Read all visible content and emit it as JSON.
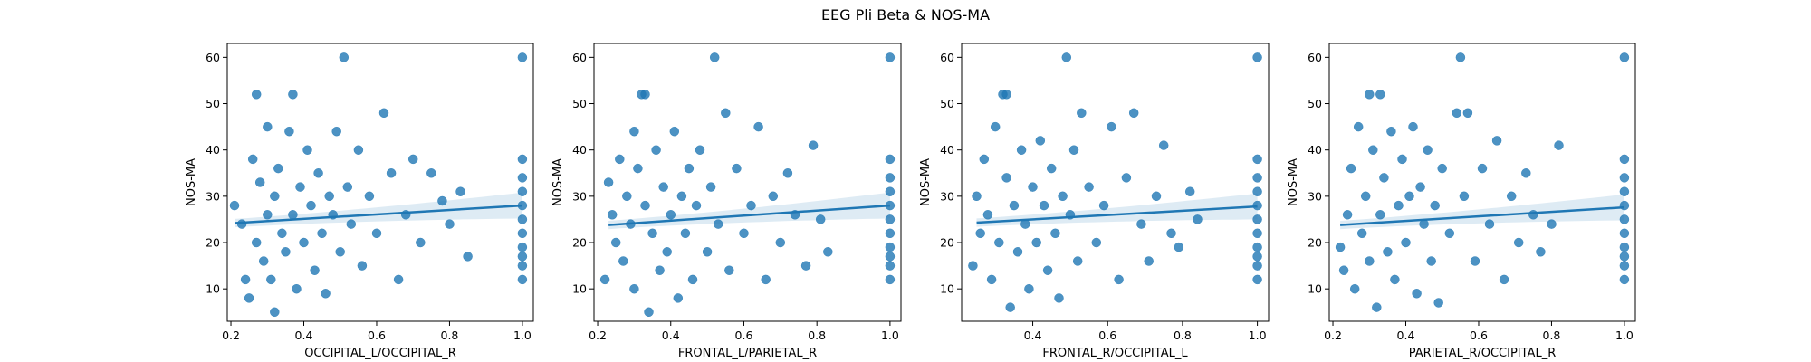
{
  "figure": {
    "suptitle": "EEG Pli Beta & NOS-MA"
  },
  "colors": {
    "series": "#1f77b4",
    "ci_band": "#1f77b4"
  },
  "chart_data": [
    {
      "type": "scatter",
      "title": "",
      "xlabel": "OCCIPITAL_L/OCCIPITAL_R",
      "ylabel": "NOS-MA",
      "xlim": [
        0.19,
        1.03
      ],
      "ylim": [
        3,
        63
      ],
      "xticks": [
        0.2,
        0.4,
        0.6,
        0.8,
        1.0
      ],
      "xtick_labels": [
        "0.2",
        "0.4",
        "0.6",
        "0.8",
        "1.0"
      ],
      "yticks": [
        10,
        20,
        30,
        40,
        50,
        60
      ],
      "ytick_labels": [
        "10",
        "20",
        "30",
        "40",
        "50",
        "60"
      ],
      "grid": false,
      "regression": {
        "x": [
          0.21,
          1.0
        ],
        "y": [
          24.2,
          28.0
        ],
        "ci_half_width": [
          0.9,
          2.8
        ]
      },
      "points": [
        [
          0.21,
          28
        ],
        [
          0.23,
          24
        ],
        [
          0.24,
          12
        ],
        [
          0.25,
          8
        ],
        [
          0.26,
          38
        ],
        [
          0.27,
          52
        ],
        [
          0.27,
          20
        ],
        [
          0.28,
          33
        ],
        [
          0.29,
          16
        ],
        [
          0.3,
          45
        ],
        [
          0.3,
          26
        ],
        [
          0.31,
          12
        ],
        [
          0.32,
          5
        ],
        [
          0.32,
          30
        ],
        [
          0.33,
          36
        ],
        [
          0.34,
          22
        ],
        [
          0.35,
          18
        ],
        [
          0.36,
          44
        ],
        [
          0.37,
          52
        ],
        [
          0.37,
          26
        ],
        [
          0.38,
          10
        ],
        [
          0.39,
          32
        ],
        [
          0.4,
          20
        ],
        [
          0.41,
          40
        ],
        [
          0.42,
          28
        ],
        [
          0.43,
          14
        ],
        [
          0.44,
          35
        ],
        [
          0.45,
          22
        ],
        [
          0.46,
          9
        ],
        [
          0.47,
          30
        ],
        [
          0.48,
          26
        ],
        [
          0.49,
          44
        ],
        [
          0.5,
          18
        ],
        [
          0.51,
          60
        ],
        [
          0.52,
          32
        ],
        [
          0.53,
          24
        ],
        [
          0.55,
          40
        ],
        [
          0.56,
          15
        ],
        [
          0.58,
          30
        ],
        [
          0.6,
          22
        ],
        [
          0.62,
          48
        ],
        [
          0.64,
          35
        ],
        [
          0.66,
          12
        ],
        [
          0.68,
          26
        ],
        [
          0.7,
          38
        ],
        [
          0.72,
          20
        ],
        [
          0.75,
          35
        ],
        [
          0.78,
          29
        ],
        [
          0.8,
          24
        ],
        [
          0.83,
          31
        ],
        [
          0.85,
          17
        ],
        [
          1.0,
          60
        ],
        [
          1.0,
          38
        ],
        [
          1.0,
          34
        ],
        [
          1.0,
          31
        ],
        [
          1.0,
          28
        ],
        [
          1.0,
          25
        ],
        [
          1.0,
          22
        ],
        [
          1.0,
          19
        ],
        [
          1.0,
          17
        ],
        [
          1.0,
          15
        ],
        [
          1.0,
          12
        ]
      ]
    },
    {
      "type": "scatter",
      "title": "",
      "xlabel": "FRONTAL_L/PARIETAL_R",
      "ylabel": "NOS-MA",
      "xlim": [
        0.19,
        1.03
      ],
      "ylim": [
        3,
        63
      ],
      "xticks": [
        0.2,
        0.4,
        0.6,
        0.8,
        1.0
      ],
      "xtick_labels": [
        "0.2",
        "0.4",
        "0.6",
        "0.8",
        "1.0"
      ],
      "yticks": [
        10,
        20,
        30,
        40,
        50,
        60
      ],
      "ytick_labels": [
        "10",
        "20",
        "30",
        "40",
        "50",
        "60"
      ],
      "grid": false,
      "regression": {
        "x": [
          0.23,
          1.0
        ],
        "y": [
          23.8,
          28.0
        ],
        "ci_half_width": [
          0.9,
          2.8
        ]
      },
      "points": [
        [
          0.22,
          12
        ],
        [
          0.23,
          33
        ],
        [
          0.24,
          26
        ],
        [
          0.25,
          20
        ],
        [
          0.26,
          38
        ],
        [
          0.27,
          16
        ],
        [
          0.28,
          30
        ],
        [
          0.29,
          24
        ],
        [
          0.3,
          44
        ],
        [
          0.3,
          10
        ],
        [
          0.31,
          36
        ],
        [
          0.32,
          52
        ],
        [
          0.33,
          52
        ],
        [
          0.33,
          28
        ],
        [
          0.34,
          5
        ],
        [
          0.35,
          22
        ],
        [
          0.36,
          40
        ],
        [
          0.37,
          14
        ],
        [
          0.38,
          32
        ],
        [
          0.39,
          18
        ],
        [
          0.4,
          26
        ],
        [
          0.41,
          44
        ],
        [
          0.42,
          8
        ],
        [
          0.43,
          30
        ],
        [
          0.44,
          22
        ],
        [
          0.45,
          36
        ],
        [
          0.46,
          12
        ],
        [
          0.47,
          28
        ],
        [
          0.48,
          40
        ],
        [
          0.5,
          18
        ],
        [
          0.51,
          32
        ],
        [
          0.52,
          60
        ],
        [
          0.53,
          24
        ],
        [
          0.55,
          48
        ],
        [
          0.56,
          14
        ],
        [
          0.58,
          36
        ],
        [
          0.6,
          22
        ],
        [
          0.62,
          28
        ],
        [
          0.64,
          45
        ],
        [
          0.66,
          12
        ],
        [
          0.68,
          30
        ],
        [
          0.7,
          20
        ],
        [
          0.72,
          35
        ],
        [
          0.74,
          26
        ],
        [
          0.77,
          15
        ],
        [
          0.79,
          41
        ],
        [
          0.81,
          25
        ],
        [
          0.83,
          18
        ],
        [
          1.0,
          60
        ],
        [
          1.0,
          38
        ],
        [
          1.0,
          34
        ],
        [
          1.0,
          31
        ],
        [
          1.0,
          28
        ],
        [
          1.0,
          25
        ],
        [
          1.0,
          22
        ],
        [
          1.0,
          19
        ],
        [
          1.0,
          17
        ],
        [
          1.0,
          15
        ],
        [
          1.0,
          12
        ]
      ]
    },
    {
      "type": "scatter",
      "title": "",
      "xlabel": "FRONTAL_R/OCCIPITAL_L",
      "ylabel": "NOS-MA",
      "xlim": [
        0.21,
        1.03
      ],
      "ylim": [
        3,
        63
      ],
      "xticks": [
        0.4,
        0.6,
        0.8,
        1.0
      ],
      "xtick_labels": [
        "0.4",
        "0.6",
        "0.8",
        "1.0"
      ],
      "yticks": [
        10,
        20,
        30,
        40,
        50,
        60
      ],
      "ytick_labels": [
        "10",
        "20",
        "30",
        "40",
        "50",
        "60"
      ],
      "grid": false,
      "regression": {
        "x": [
          0.25,
          1.0
        ],
        "y": [
          24.3,
          27.8
        ],
        "ci_half_width": [
          0.9,
          2.8
        ]
      },
      "points": [
        [
          0.24,
          15
        ],
        [
          0.25,
          30
        ],
        [
          0.26,
          22
        ],
        [
          0.27,
          38
        ],
        [
          0.28,
          26
        ],
        [
          0.29,
          12
        ],
        [
          0.3,
          45
        ],
        [
          0.31,
          20
        ],
        [
          0.32,
          52
        ],
        [
          0.33,
          52
        ],
        [
          0.33,
          34
        ],
        [
          0.34,
          6
        ],
        [
          0.35,
          28
        ],
        [
          0.36,
          18
        ],
        [
          0.37,
          40
        ],
        [
          0.38,
          24
        ],
        [
          0.39,
          10
        ],
        [
          0.4,
          32
        ],
        [
          0.41,
          20
        ],
        [
          0.42,
          42
        ],
        [
          0.43,
          28
        ],
        [
          0.44,
          14
        ],
        [
          0.45,
          36
        ],
        [
          0.46,
          22
        ],
        [
          0.47,
          8
        ],
        [
          0.48,
          30
        ],
        [
          0.49,
          60
        ],
        [
          0.5,
          26
        ],
        [
          0.51,
          40
        ],
        [
          0.52,
          16
        ],
        [
          0.53,
          48
        ],
        [
          0.55,
          32
        ],
        [
          0.57,
          20
        ],
        [
          0.59,
          28
        ],
        [
          0.61,
          45
        ],
        [
          0.63,
          12
        ],
        [
          0.65,
          34
        ],
        [
          0.67,
          48
        ],
        [
          0.69,
          24
        ],
        [
          0.71,
          16
        ],
        [
          0.73,
          30
        ],
        [
          0.75,
          41
        ],
        [
          0.77,
          22
        ],
        [
          0.79,
          19
        ],
        [
          0.82,
          31
        ],
        [
          0.84,
          25
        ],
        [
          1.0,
          60
        ],
        [
          1.0,
          38
        ],
        [
          1.0,
          34
        ],
        [
          1.0,
          31
        ],
        [
          1.0,
          28
        ],
        [
          1.0,
          25
        ],
        [
          1.0,
          22
        ],
        [
          1.0,
          19
        ],
        [
          1.0,
          17
        ],
        [
          1.0,
          15
        ],
        [
          1.0,
          12
        ]
      ]
    },
    {
      "type": "scatter",
      "title": "",
      "xlabel": "PARIETAL_R/OCCIPITAL_R",
      "ylabel": "NOS-MA",
      "xlim": [
        0.19,
        1.03
      ],
      "ylim": [
        3,
        63
      ],
      "xticks": [
        0.2,
        0.4,
        0.6,
        0.8,
        1.0
      ],
      "xtick_labels": [
        "0.2",
        "0.4",
        "0.6",
        "0.8",
        "1.0"
      ],
      "yticks": [
        10,
        20,
        30,
        40,
        50,
        60
      ],
      "ytick_labels": [
        "10",
        "20",
        "30",
        "40",
        "50",
        "60"
      ],
      "grid": false,
      "regression": {
        "x": [
          0.22,
          1.0
        ],
        "y": [
          23.8,
          27.6
        ],
        "ci_half_width": [
          0.9,
          2.8
        ]
      },
      "points": [
        [
          0.22,
          19
        ],
        [
          0.23,
          14
        ],
        [
          0.24,
          26
        ],
        [
          0.25,
          36
        ],
        [
          0.26,
          10
        ],
        [
          0.27,
          45
        ],
        [
          0.28,
          22
        ],
        [
          0.29,
          30
        ],
        [
          0.3,
          52
        ],
        [
          0.3,
          16
        ],
        [
          0.31,
          40
        ],
        [
          0.32,
          6
        ],
        [
          0.33,
          52
        ],
        [
          0.33,
          26
        ],
        [
          0.34,
          34
        ],
        [
          0.35,
          18
        ],
        [
          0.36,
          44
        ],
        [
          0.37,
          12
        ],
        [
          0.38,
          28
        ],
        [
          0.39,
          38
        ],
        [
          0.4,
          20
        ],
        [
          0.41,
          30
        ],
        [
          0.42,
          45
        ],
        [
          0.43,
          9
        ],
        [
          0.44,
          32
        ],
        [
          0.45,
          24
        ],
        [
          0.46,
          40
        ],
        [
          0.47,
          16
        ],
        [
          0.48,
          28
        ],
        [
          0.49,
          7
        ],
        [
          0.5,
          36
        ],
        [
          0.52,
          22
        ],
        [
          0.54,
          48
        ],
        [
          0.55,
          60
        ],
        [
          0.56,
          30
        ],
        [
          0.57,
          48
        ],
        [
          0.59,
          16
        ],
        [
          0.61,
          36
        ],
        [
          0.63,
          24
        ],
        [
          0.65,
          42
        ],
        [
          0.67,
          12
        ],
        [
          0.69,
          30
        ],
        [
          0.71,
          20
        ],
        [
          0.73,
          35
        ],
        [
          0.75,
          26
        ],
        [
          0.77,
          18
        ],
        [
          0.8,
          24
        ],
        [
          0.82,
          41
        ],
        [
          1.0,
          60
        ],
        [
          1.0,
          38
        ],
        [
          1.0,
          34
        ],
        [
          1.0,
          31
        ],
        [
          1.0,
          28
        ],
        [
          1.0,
          25
        ],
        [
          1.0,
          22
        ],
        [
          1.0,
          19
        ],
        [
          1.0,
          17
        ],
        [
          1.0,
          15
        ],
        [
          1.0,
          12
        ]
      ]
    }
  ]
}
